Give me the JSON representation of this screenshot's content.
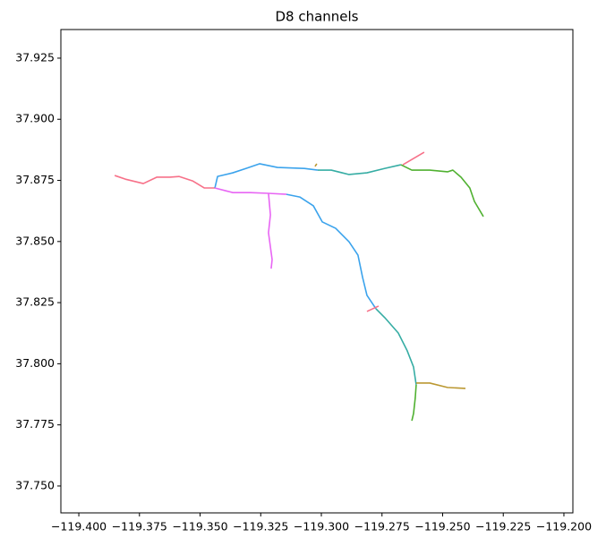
{
  "chart_data": {
    "type": "line",
    "title": "D8 channels",
    "xlim": [
      -119.4074,
      -119.1963
    ],
    "ylim": [
      37.739,
      37.9367
    ],
    "xticks": [
      {
        "value": -119.4,
        "label": "−119.400"
      },
      {
        "value": -119.375,
        "label": "−119.375"
      },
      {
        "value": -119.35,
        "label": "−119.350"
      },
      {
        "value": -119.325,
        "label": "−119.325"
      },
      {
        "value": -119.3,
        "label": "−119.300"
      },
      {
        "value": -119.275,
        "label": "−119.275"
      },
      {
        "value": -119.25,
        "label": "−119.250"
      },
      {
        "value": -119.225,
        "label": "−119.225"
      },
      {
        "value": -119.2,
        "label": "−119.200"
      }
    ],
    "yticks": [
      {
        "value": 37.75,
        "label": "37.750"
      },
      {
        "value": 37.775,
        "label": "37.775"
      },
      {
        "value": 37.8,
        "label": "37.800"
      },
      {
        "value": 37.825,
        "label": "37.825"
      },
      {
        "value": 37.85,
        "label": "37.850"
      },
      {
        "value": 37.875,
        "label": "37.875"
      },
      {
        "value": 37.9,
        "label": "37.900"
      },
      {
        "value": 37.925,
        "label": "37.925"
      }
    ],
    "grid": false,
    "series": [
      {
        "color": "#f77189",
        "x": [
          -119.3852,
          -119.3808,
          -119.3734,
          -119.3679,
          -119.3624,
          -119.3587,
          -119.3531,
          -119.3483,
          -119.3439
        ],
        "y": [
          37.877,
          37.8755,
          37.8737,
          37.8763,
          37.8763,
          37.8766,
          37.8748,
          37.8719,
          37.8719
        ]
      },
      {
        "color": "#3ba3ec",
        "x": [
          -119.3439,
          -119.3428,
          -119.3365,
          -119.331,
          -119.3255,
          -119.3181,
          -119.307,
          -119.3015
        ],
        "y": [
          37.8719,
          37.8766,
          37.8781,
          37.8799,
          37.8818,
          37.8803,
          37.8799,
          37.8792
        ]
      },
      {
        "color": "#e866f4",
        "x": [
          -119.3439,
          -119.3365,
          -119.3292,
          -119.3218,
          -119.3144
        ],
        "y": [
          37.8719,
          37.87,
          37.87,
          37.8697,
          37.8693
        ]
      },
      {
        "color": "#e866f4",
        "x": [
          -119.3218,
          -119.321,
          -119.3218,
          -119.3203,
          -119.3207
        ],
        "y": [
          37.8697,
          37.8609,
          37.8536,
          37.8426,
          37.8389
        ]
      },
      {
        "color": "#3ba3ec",
        "x": [
          -119.3144,
          -119.3089,
          -119.3033,
          -119.2996,
          -119.2941,
          -119.2886,
          -119.2849,
          -119.283,
          -119.2812,
          -119.2775
        ],
        "y": [
          37.8693,
          37.8682,
          37.8646,
          37.858,
          37.8554,
          37.8499,
          37.8444,
          37.8353,
          37.828,
          37.8225
        ]
      },
      {
        "color": "#f77189",
        "x": [
          -119.2812,
          -119.2764
        ],
        "y": [
          37.8214,
          37.8236
        ]
      },
      {
        "color": "#36ada4",
        "x": [
          -119.3015,
          -119.2959,
          -119.2886,
          -119.2812,
          -119.2738,
          -119.2672
        ],
        "y": [
          37.8792,
          37.8792,
          37.8774,
          37.8781,
          37.8799,
          37.8814
        ]
      },
      {
        "color": "#f77189",
        "x": [
          -119.2664,
          -119.2576
        ],
        "y": [
          37.8814,
          37.8865
        ]
      },
      {
        "color": "#bb9832",
        "x": [
          -119.3026,
          -119.3019
        ],
        "y": [
          37.8807,
          37.8818
        ]
      },
      {
        "color": "#50b131",
        "x": [
          -119.2672,
          -119.2627,
          -119.2553,
          -119.248,
          -119.2458,
          -119.2424,
          -119.2388,
          -119.2369,
          -119.2332
        ],
        "y": [
          37.8814,
          37.8792,
          37.8792,
          37.8785,
          37.8792,
          37.8763,
          37.8719,
          37.8664,
          37.8602
        ]
      },
      {
        "color": "#36ada4",
        "x": [
          -119.2775,
          -119.2738,
          -119.2683,
          -119.2646,
          -119.262,
          -119.2609
        ],
        "y": [
          37.8225,
          37.8188,
          37.8126,
          37.8053,
          37.7987,
          37.7914
        ]
      },
      {
        "color": "#bb9832",
        "x": [
          -119.2609,
          -119.2553,
          -119.248,
          -119.2406
        ],
        "y": [
          37.7921,
          37.7921,
          37.7903,
          37.7899
        ]
      },
      {
        "color": "#50b131",
        "x": [
          -119.2609,
          -119.2613,
          -119.262,
          -119.2627
        ],
        "y": [
          37.7914,
          37.7859,
          37.7796,
          37.7767
        ]
      }
    ]
  }
}
